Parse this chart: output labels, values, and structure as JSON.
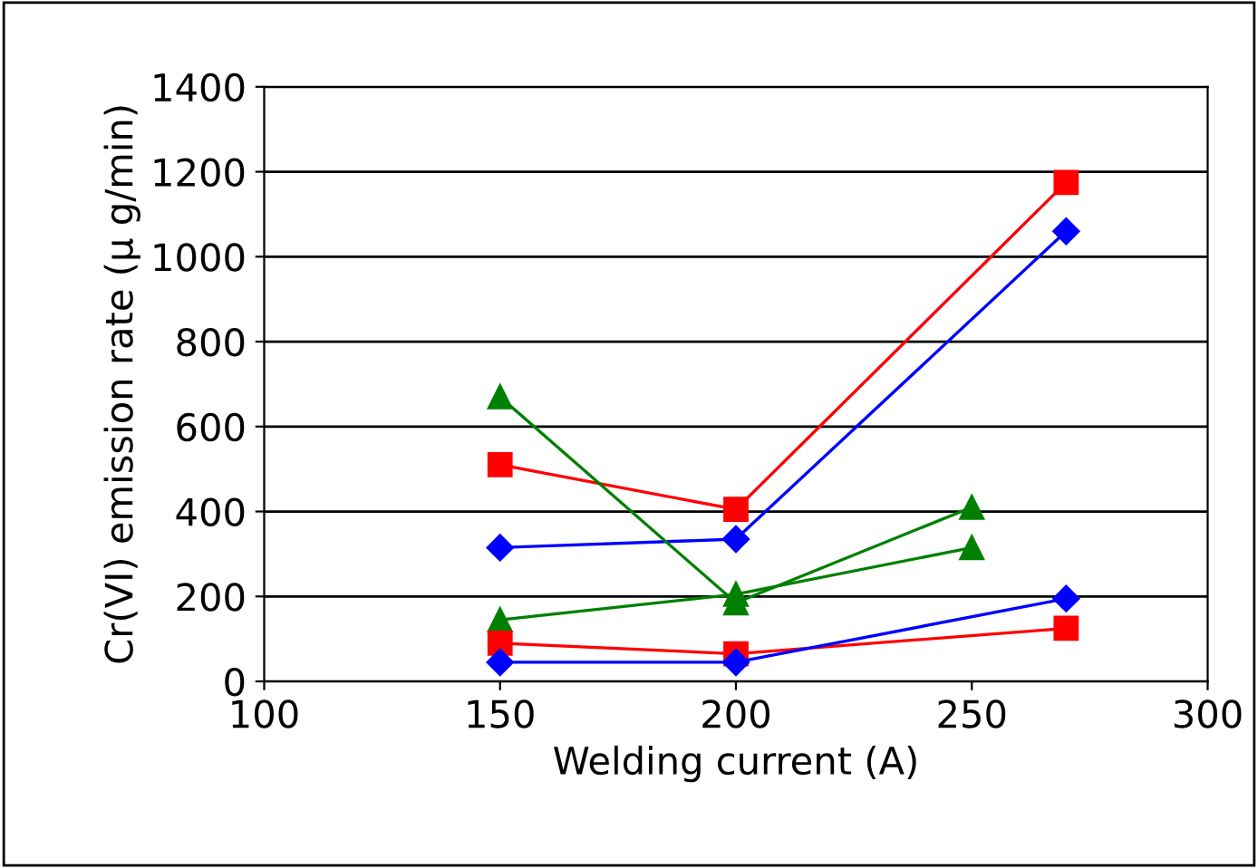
{
  "chart_data": {
    "type": "line",
    "xlabel": "Welding current (A)",
    "ylabel": "Cr(VI) emission rate (μ g/min)",
    "xlim": [
      100,
      300
    ],
    "xticks": [
      100,
      150,
      200,
      250,
      300
    ],
    "ylim": [
      0,
      1400
    ],
    "yticks": [
      0,
      200,
      400,
      600,
      800,
      1000,
      1200,
      1400
    ],
    "grid": "y",
    "legend": false,
    "series": [
      {
        "color": "#ff0000",
        "marker": "square",
        "x": [
          150,
          200,
          270
        ],
        "values": [
          510,
          405,
          1175
        ]
      },
      {
        "color": "#0000ff",
        "marker": "diamond",
        "x": [
          150,
          200,
          270
        ],
        "values": [
          315,
          335,
          1060
        ]
      },
      {
        "color": "#008000",
        "marker": "triangle",
        "x": [
          150,
          200,
          250
        ],
        "values": [
          670,
          185,
          410
        ]
      },
      {
        "color": "#008000",
        "marker": "triangle",
        "x": [
          150,
          200,
          250
        ],
        "values": [
          145,
          205,
          315
        ]
      },
      {
        "color": "#ff0000",
        "marker": "square",
        "x": [
          150,
          200,
          270
        ],
        "values": [
          90,
          65,
          125
        ]
      },
      {
        "color": "#0000ff",
        "marker": "diamond",
        "x": [
          150,
          200,
          270
        ],
        "values": [
          45,
          45,
          195
        ]
      }
    ]
  }
}
